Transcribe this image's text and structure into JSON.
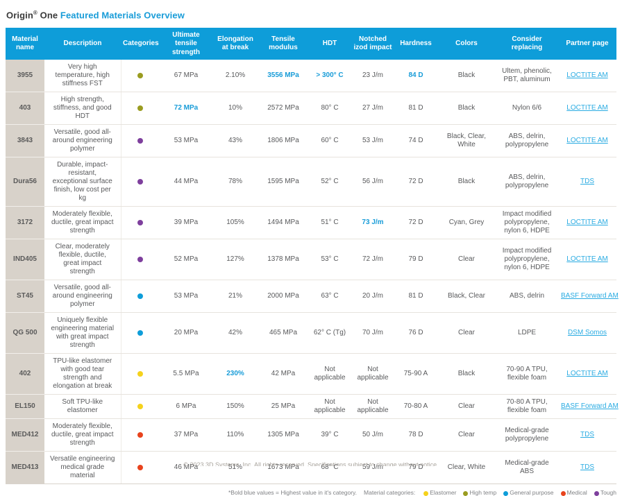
{
  "title": {
    "prefix": "Origin",
    "reg_mark": "®",
    "middle": " One ",
    "highlight": "Featured Materials Overview"
  },
  "colors": {
    "header_bg": "#0e9dd9",
    "accent_blue": "#189cd8",
    "link_blue": "#29abe2",
    "material_col_bg": "#d8d2ca",
    "categories": {
      "elastomer": "#f5d21c",
      "high_temp": "#9a9c20",
      "general": "#0e9dd9",
      "medical": "#e8431d",
      "tough": "#7e3f9d"
    }
  },
  "table": {
    "columns": [
      "Material name",
      "Description",
      "Categories",
      "Ultimate tensile strength",
      "Elongation at break",
      "Tensile modulus",
      "HDT",
      "Notched izod impact",
      "Hardness",
      "Colors",
      "Consider replacing",
      "Partner page"
    ],
    "rows": [
      {
        "name": "3955",
        "description": "Very high temperature, high stiffness FST",
        "category": "high_temp",
        "cells": [
          {
            "v": "67 MPa"
          },
          {
            "v": "2.10%"
          },
          {
            "v": "3556 MPa",
            "hl": true
          },
          {
            "v": "> 300° C",
            "hl": true
          },
          {
            "v": "23 J/m"
          },
          {
            "v": "84 D",
            "hl": true
          },
          {
            "v": "Black"
          },
          {
            "v": "Ultem, phenolic, PBT, aluminum"
          }
        ],
        "link": "LOCTITE AM"
      },
      {
        "name": "403",
        "description": "High strength, stiffness, and good HDT",
        "category": "high_temp",
        "cells": [
          {
            "v": "72 MPa",
            "hl": true
          },
          {
            "v": "10%"
          },
          {
            "v": "2572 MPa"
          },
          {
            "v": "80° C"
          },
          {
            "v": "27 J/m"
          },
          {
            "v": "81 D"
          },
          {
            "v": "Black"
          },
          {
            "v": "Nylon 6/6"
          }
        ],
        "link": "LOCTITE AM"
      },
      {
        "name": "3843",
        "description": "Versatile, good all-around engineering polymer",
        "category": "tough",
        "cells": [
          {
            "v": "53 MPa"
          },
          {
            "v": "43%"
          },
          {
            "v": "1806 MPa"
          },
          {
            "v": "60° C"
          },
          {
            "v": "53 J/m"
          },
          {
            "v": "74 D"
          },
          {
            "v": "Black, Clear, White"
          },
          {
            "v": "ABS, delrin, polypropylene"
          }
        ],
        "link": "LOCTITE AM"
      },
      {
        "name": "Dura56",
        "description": "Durable, impact-resistant, exceptional surface finish, low cost per kg",
        "category": "tough",
        "cells": [
          {
            "v": "44 MPa"
          },
          {
            "v": "78%"
          },
          {
            "v": "1595 MPa"
          },
          {
            "v": "52° C"
          },
          {
            "v": "56 J/m"
          },
          {
            "v": "72 D"
          },
          {
            "v": "Black"
          },
          {
            "v": "ABS, delrin, polypropylene"
          }
        ],
        "link": "TDS"
      },
      {
        "name": "3172",
        "description": "Moderately flexible, ductile, great impact strength",
        "category": "tough",
        "cells": [
          {
            "v": "39 MPa"
          },
          {
            "v": "105%"
          },
          {
            "v": "1494 MPa"
          },
          {
            "v": "51° C"
          },
          {
            "v": "73 J/m",
            "hl": true
          },
          {
            "v": "72 D"
          },
          {
            "v": "Cyan, Grey"
          },
          {
            "v": "Impact modified polypropylene, nylon 6, HDPE"
          }
        ],
        "link": "LOCTITE AM"
      },
      {
        "name": "IND405",
        "description": "Clear, moderately flexible, ductile, great impact strength",
        "category": "tough",
        "cells": [
          {
            "v": "52 MPa"
          },
          {
            "v": "127%"
          },
          {
            "v": "1378 MPa"
          },
          {
            "v": "53° C"
          },
          {
            "v": "72 J/m"
          },
          {
            "v": "79 D"
          },
          {
            "v": "Clear"
          },
          {
            "v": "Impact modified polypropylene, nylon 6, HDPE"
          }
        ],
        "link": "LOCTITE AM"
      },
      {
        "name": "ST45",
        "description": "Versatile, good all-around engineering polymer",
        "category": "general",
        "cells": [
          {
            "v": "53 MPa"
          },
          {
            "v": "21%"
          },
          {
            "v": "2000 MPa"
          },
          {
            "v": "63° C"
          },
          {
            "v": "20 J/m"
          },
          {
            "v": "81 D"
          },
          {
            "v": "Black, Clear"
          },
          {
            "v": "ABS, delrin"
          }
        ],
        "link": "BASF Forward AM"
      },
      {
        "name": "QG 500",
        "description": "Uniquely flexible engineering material with great impact strength",
        "category": "general",
        "cells": [
          {
            "v": "20 MPa"
          },
          {
            "v": "42%"
          },
          {
            "v": "465 MPa"
          },
          {
            "v": "62° C (Tg)"
          },
          {
            "v": "70 J/m"
          },
          {
            "v": "76 D"
          },
          {
            "v": "Clear"
          },
          {
            "v": "LDPE"
          }
        ],
        "link": "DSM Somos"
      },
      {
        "name": "402",
        "description": "TPU-like elastomer with good tear strength and elongation at break",
        "category": "elastomer",
        "cells": [
          {
            "v": "5.5 MPa"
          },
          {
            "v": "230%",
            "hl": true
          },
          {
            "v": "42 MPa"
          },
          {
            "v": "Not applicable"
          },
          {
            "v": "Not applicable"
          },
          {
            "v": "75-90 A"
          },
          {
            "v": "Black"
          },
          {
            "v": "70-90 A TPU, flexible foam"
          }
        ],
        "link": "LOCTITE AM"
      },
      {
        "name": "EL150",
        "description": "Soft TPU-like elastomer",
        "category": "elastomer",
        "cells": [
          {
            "v": "6 MPa"
          },
          {
            "v": "150%"
          },
          {
            "v": "25 MPa"
          },
          {
            "v": "Not applicable"
          },
          {
            "v": "Not applicable"
          },
          {
            "v": "70-80 A"
          },
          {
            "v": "Clear"
          },
          {
            "v": "70-80 A TPU, flexible foam"
          }
        ],
        "link": "BASF Forward AM"
      },
      {
        "name": "MED412",
        "description": "Moderately flexible, ductile, great impact strength",
        "category": "medical",
        "cells": [
          {
            "v": "37 MPa"
          },
          {
            "v": "110%"
          },
          {
            "v": "1305 MPa"
          },
          {
            "v": "39° C"
          },
          {
            "v": "50 J/m"
          },
          {
            "v": "78 D"
          },
          {
            "v": "Clear"
          },
          {
            "v": "Medical-grade polypropylene"
          }
        ],
        "link": "TDS"
      },
      {
        "name": "MED413",
        "description": "Versatile engineering medical grade material",
        "category": "medical",
        "cells": [
          {
            "v": "46 MPa"
          },
          {
            "v": "51%"
          },
          {
            "v": "1673 MPa"
          },
          {
            "v": "68° C"
          },
          {
            "v": "59 J/m"
          },
          {
            "v": "79 D"
          },
          {
            "v": "Clear, White"
          },
          {
            "v": "Medical-grade ABS"
          }
        ],
        "link": "TDS"
      }
    ]
  },
  "footer": {
    "footnote": "*Bold blue values = Highest value in it's category.",
    "legend_label": "Material categories:",
    "legend": [
      {
        "label": "Elastomer",
        "category": "elastomer"
      },
      {
        "label": "High temp",
        "category": "high_temp"
      },
      {
        "label": "General purpose",
        "category": "general"
      },
      {
        "label": "Medical",
        "category": "medical"
      },
      {
        "label": "Tough",
        "category": "tough"
      }
    ],
    "clipped_copyright": "© 2023 3D Systems, Inc. All rights reserved. Specifications subject to change without notice."
  }
}
